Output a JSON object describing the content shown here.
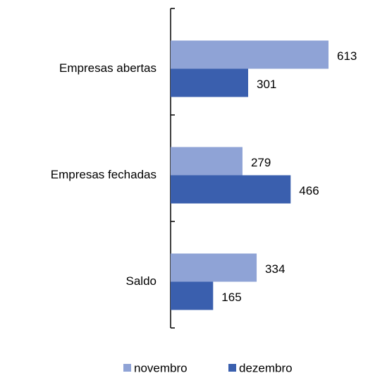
{
  "chart_data": {
    "type": "bar",
    "orientation": "horizontal",
    "categories": [
      "Empresas abertas",
      "Empresas fechadas",
      "Saldo"
    ],
    "series": [
      {
        "name": "novembro",
        "color": "#8fa3d6",
        "values": [
          613,
          279,
          334
        ]
      },
      {
        "name": "dezembro",
        "color": "#3a5fae",
        "values": [
          301,
          466,
          165
        ]
      }
    ],
    "legend": "bottom"
  }
}
